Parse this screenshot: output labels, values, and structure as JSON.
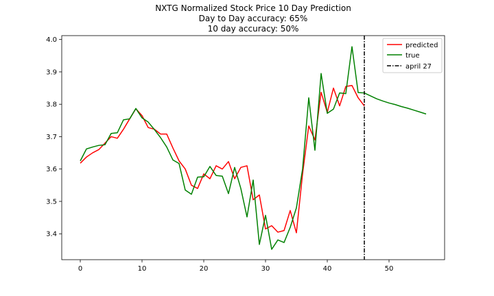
{
  "chart_data": {
    "type": "line",
    "title_lines": [
      "NXTG Normalized Stock Price 10 Day Prediction",
      "Day to Day accuracy: 65%",
      "10 day accuracy: 50%"
    ],
    "xlabel": "",
    "ylabel": "",
    "xlim": [
      -3,
      59
    ],
    "ylim": [
      3.32,
      4.012
    ],
    "x_ticks": [
      0,
      10,
      20,
      30,
      40,
      50
    ],
    "x_tick_labels": [
      "0",
      "10",
      "20",
      "30",
      "40",
      "50"
    ],
    "y_ticks": [
      3.4,
      3.5,
      3.6,
      3.7,
      3.8,
      3.9,
      4.0
    ],
    "y_tick_labels": [
      "3.4",
      "3.5",
      "3.6",
      "3.7",
      "3.8",
      "3.9",
      "4.0"
    ],
    "grid": false,
    "legend_position": "top-right",
    "series": [
      {
        "name": "predicted",
        "color": "#ff0000",
        "x": [
          0,
          1,
          2,
          3,
          4,
          5,
          6,
          7,
          8,
          9,
          10,
          11,
          12,
          13,
          14,
          15,
          16,
          17,
          18,
          19,
          20,
          21,
          22,
          23,
          24,
          25,
          26,
          27,
          28,
          29,
          30,
          31,
          32,
          33,
          34,
          35,
          36,
          37,
          38,
          39,
          40,
          41,
          42,
          43,
          44,
          45,
          46
        ],
        "y": [
          3.618,
          3.637,
          3.65,
          3.66,
          3.68,
          3.7,
          3.695,
          3.723,
          3.755,
          3.786,
          3.765,
          3.728,
          3.723,
          3.708,
          3.708,
          3.665,
          3.625,
          3.6,
          3.55,
          3.54,
          3.585,
          3.57,
          3.61,
          3.6,
          3.623,
          3.57,
          3.605,
          3.61,
          3.505,
          3.52,
          3.415,
          3.425,
          3.405,
          3.41,
          3.472,
          3.403,
          3.585,
          3.733,
          3.69,
          3.837,
          3.775,
          3.85,
          3.795,
          3.855,
          3.858,
          3.82,
          3.795
        ]
      },
      {
        "name": "true",
        "color": "#008000",
        "x": [
          0,
          1,
          2,
          3,
          4,
          5,
          6,
          7,
          8,
          9,
          10,
          11,
          12,
          13,
          14,
          15,
          16,
          17,
          18,
          19,
          20,
          21,
          22,
          23,
          24,
          25,
          26,
          27,
          28,
          29,
          30,
          31,
          32,
          33,
          34,
          35,
          36,
          37,
          38,
          39,
          40,
          41,
          42,
          43,
          44,
          45,
          46,
          47,
          48,
          49,
          50,
          51,
          52,
          53,
          54,
          55,
          56
        ],
        "y": [
          3.625,
          3.662,
          3.668,
          3.673,
          3.675,
          3.71,
          3.712,
          3.752,
          3.755,
          3.787,
          3.758,
          3.745,
          3.722,
          3.697,
          3.668,
          3.628,
          3.617,
          3.535,
          3.522,
          3.575,
          3.576,
          3.608,
          3.58,
          3.578,
          3.524,
          3.605,
          3.54,
          3.452,
          3.566,
          3.367,
          3.457,
          3.352,
          3.381,
          3.373,
          3.42,
          3.48,
          3.6,
          3.82,
          3.658,
          3.895,
          3.772,
          3.785,
          3.835,
          3.833,
          3.978,
          3.836,
          3.835,
          3.826,
          3.817,
          3.81,
          3.804,
          3.799,
          3.793,
          3.788,
          3.782,
          3.776,
          3.77
        ]
      }
    ],
    "vline": {
      "name": "april 27",
      "x": 46,
      "color": "#000000",
      "style": "dashdot"
    }
  }
}
